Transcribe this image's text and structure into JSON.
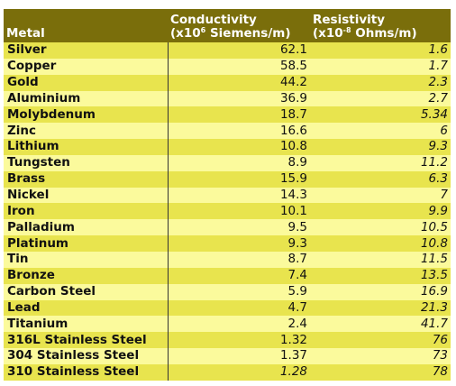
{
  "table": {
    "headers": {
      "metal": "Metal",
      "conductivity_title": "Conductivity",
      "conductivity_unit_prefix": "(x10",
      "conductivity_unit_exp": "6",
      "conductivity_unit_suffix": " Siemens/m)",
      "resistivity_title": "Resistivity",
      "resistivity_unit_prefix": "(x10",
      "resistivity_unit_exp": "-8",
      "resistivity_unit_suffix": " Ohms/m)"
    },
    "rows": [
      {
        "metal": "Silver",
        "conductivity": "62.1",
        "resistivity": "1.6"
      },
      {
        "metal": "Copper",
        "conductivity": "58.5",
        "resistivity": "1.7"
      },
      {
        "metal": "Gold",
        "conductivity": "44.2",
        "resistivity": "2.3"
      },
      {
        "metal": "Aluminium",
        "conductivity": "36.9",
        "resistivity": "2.7"
      },
      {
        "metal": "Molybdenum",
        "conductivity": "18.7",
        "resistivity": "5.34"
      },
      {
        "metal": "Zinc",
        "conductivity": "16.6",
        "resistivity": "6"
      },
      {
        "metal": "Lithium",
        "conductivity": "10.8",
        "resistivity": "9.3"
      },
      {
        "metal": "Tungsten",
        "conductivity": "8.9",
        "resistivity": "11.2"
      },
      {
        "metal": "Brass",
        "conductivity": "15.9",
        "resistivity": "6.3"
      },
      {
        "metal": "Nickel",
        "conductivity": "14.3",
        "resistivity": "7"
      },
      {
        "metal": "Iron",
        "conductivity": "10.1",
        "resistivity": "9.9"
      },
      {
        "metal": "Palladium",
        "conductivity": "9.5",
        "resistivity": "10.5"
      },
      {
        "metal": "Platinum",
        "conductivity": "9.3",
        "resistivity": "10.8"
      },
      {
        "metal": "Tin",
        "conductivity": "8.7",
        "resistivity": "11.5"
      },
      {
        "metal": "Bronze",
        "conductivity": "7.4",
        "resistivity": "13.5"
      },
      {
        "metal": "Carbon Steel",
        "conductivity": "5.9",
        "resistivity": "16.9"
      },
      {
        "metal": "Lead",
        "conductivity": "4.7",
        "resistivity": "21.3"
      },
      {
        "metal": "Titanium",
        "conductivity": "2.4",
        "resistivity": "41.7"
      },
      {
        "metal": "316L Stainless Steel",
        "conductivity": "1.32",
        "resistivity": "76"
      },
      {
        "metal": "304 Stainless Steel",
        "conductivity": "1.37",
        "resistivity": "73"
      },
      {
        "metal": "310 Stainless Steel",
        "conductivity": "1.28",
        "resistivity": "78",
        "conductivity_italic": true
      }
    ]
  },
  "colors": {
    "header_bg": "#7a6e0b",
    "header_text": "#ffffff",
    "row_odd_bg": "#e8e44e",
    "row_even_bg": "#fbfa9c",
    "text": "#111111"
  }
}
